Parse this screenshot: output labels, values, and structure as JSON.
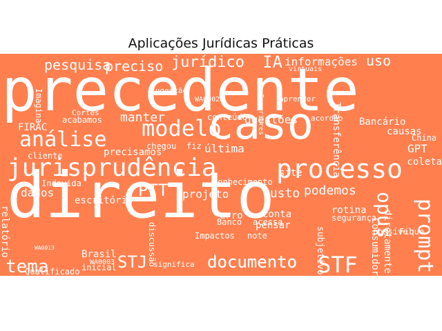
{
  "title": "Aplicações Jurídicas Práticas",
  "colors": {
    "background": "#ffffff",
    "cloud_fill": "#ff7f4f",
    "word_color": "#ffffff",
    "title_color": "#111111"
  },
  "words": [
    "precedente",
    "direito",
    "caso",
    "jurisprudência",
    "processo",
    "modelo",
    "análise",
    "prompt",
    "opus",
    "documento",
    "STF",
    "tema",
    "STJ",
    "PTT",
    "IA",
    "jurídico",
    "pesquisa",
    "preciso",
    "informações",
    "uso",
    "manter",
    "podemos",
    "custo",
    "projeto",
    "conhecimento",
    "dados",
    "escritório",
    "Brasil",
    "questões",
    "última",
    "precisamos",
    "acabamos",
    "Bancário",
    "causas",
    "site",
    "Consumidor",
    "diretamente",
    "subjetivo",
    "relatório",
    "Impactos",
    "pensar",
    "conta",
    "note",
    "erro",
    "FIRAC",
    "cliente",
    "Indevida",
    "Transferência",
    "rotina",
    "segurança",
    "GPT",
    "coleta",
    "China",
    "conteúdo",
    "chegou",
    "fiz",
    "Fique",
    "discussão",
    "significa",
    "documento",
    "acessa",
    "Banco",
    "Imagina",
    "Qualificado",
    "inicial",
    "WA0003",
    "WA0002",
    "WA0013",
    "Cortes",
    "sugestão",
    "possível",
    "aprender",
    "Superiores",
    "acordão",
    "virtuais"
  ]
}
